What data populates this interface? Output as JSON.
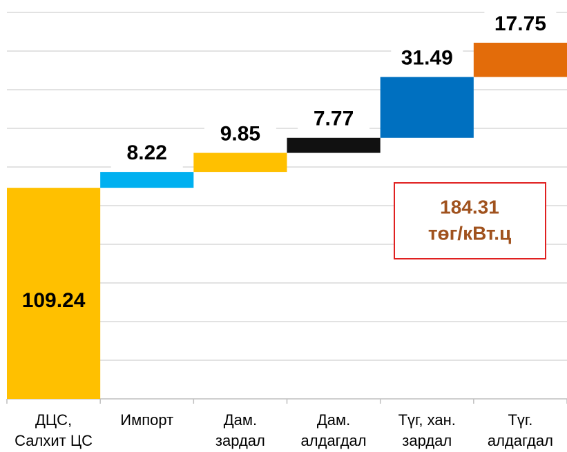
{
  "chart_data": {
    "type": "waterfall",
    "categories": [
      [
        "ДЦС,",
        "Салхит ЦС"
      ],
      [
        "Импорт"
      ],
      [
        "Дам.",
        "зардал"
      ],
      [
        "Дам.",
        "алдагдал"
      ],
      [
        "Түг, хан.",
        "зардал"
      ],
      [
        "Түг.",
        "алдагдал"
      ]
    ],
    "values": [
      109.24,
      8.22,
      9.85,
      7.77,
      31.49,
      17.75
    ],
    "colors": [
      "#FFC000",
      "#00B0F0",
      "#FFC000",
      "#111111",
      "#0070C0",
      "#E36C0A"
    ],
    "ylim": [
      0,
      200
    ],
    "yticks": [
      0,
      20,
      40,
      60,
      80,
      100,
      120,
      140,
      160,
      180,
      200
    ],
    "grid": true,
    "annotation": {
      "lines": [
        "184.31",
        "төг/кВт.ц"
      ],
      "color": "#A0521E",
      "border": "#E02020"
    }
  }
}
